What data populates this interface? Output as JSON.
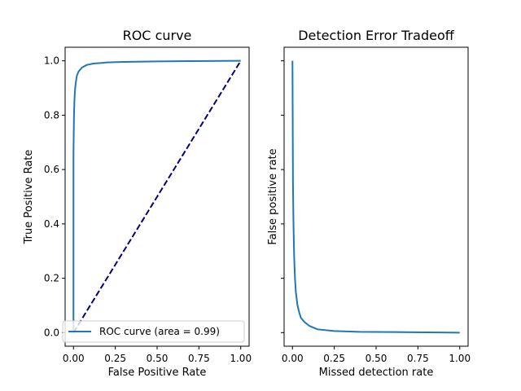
{
  "chart_data": [
    {
      "type": "line",
      "title": "ROC curve",
      "xlabel": "False Positive Rate",
      "ylabel": "True Positive Rate",
      "xlim": [
        -0.05,
        1.05
      ],
      "ylim": [
        -0.05,
        1.05
      ],
      "xticks": [
        0.0,
        0.25,
        0.5,
        0.75,
        1.0
      ],
      "xtick_labels": [
        "0.00",
        "0.25",
        "0.50",
        "0.75",
        "1.00"
      ],
      "yticks": [
        0.0,
        0.2,
        0.4,
        0.6,
        0.8,
        1.0
      ],
      "ytick_labels": [
        "0.0",
        "0.2",
        "0.4",
        "0.6",
        "0.8",
        "1.0"
      ],
      "grid": false,
      "legend": {
        "position": "lower-right",
        "entries": [
          "ROC curve (area = 0.99)"
        ]
      },
      "series": [
        {
          "name": "ROC curve (area = 0.99)",
          "color": "#1f77b4",
          "style": "solid",
          "x": [
            0.0,
            0.0,
            0.003,
            0.006,
            0.01,
            0.015,
            0.02,
            0.03,
            0.05,
            0.08,
            0.12,
            0.2,
            0.3,
            0.5,
            0.7,
            1.0
          ],
          "y": [
            0.0,
            0.66,
            0.8,
            0.86,
            0.9,
            0.925,
            0.945,
            0.96,
            0.975,
            0.985,
            0.99,
            0.994,
            0.996,
            0.998,
            0.999,
            1.0
          ]
        },
        {
          "color": "#000080",
          "style": "dashed",
          "x": [
            0.0,
            1.0
          ],
          "y": [
            0.0,
            1.0
          ]
        }
      ]
    },
    {
      "type": "line",
      "title": "Detection Error Tradeoff",
      "xlabel": "Missed detection rate",
      "ylabel": "False positive rate",
      "xlim": [
        -0.05,
        1.05
      ],
      "ylim": [
        -0.05,
        1.05
      ],
      "xticks": [
        0.0,
        0.25,
        0.5,
        0.75,
        1.0
      ],
      "xtick_labels": [
        "0.00",
        "0.25",
        "0.50",
        "0.75",
        "1.00"
      ],
      "yticks": [
        0.0,
        0.2,
        0.4,
        0.6,
        0.8,
        1.0
      ],
      "ytick_labels": [],
      "grid": false,
      "series": [
        {
          "color": "#1f77b4",
          "style": "solid",
          "x": [
            0.0,
            0.003,
            0.006,
            0.01,
            0.015,
            0.02,
            0.03,
            0.04,
            0.05,
            0.07,
            0.1,
            0.15,
            0.25,
            0.4,
            0.6,
            0.8,
            1.0
          ],
          "y": [
            1.0,
            0.55,
            0.4,
            0.28,
            0.2,
            0.15,
            0.1,
            0.075,
            0.055,
            0.04,
            0.025,
            0.012,
            0.006,
            0.003,
            0.002,
            0.001,
            0.0
          ]
        }
      ]
    }
  ]
}
